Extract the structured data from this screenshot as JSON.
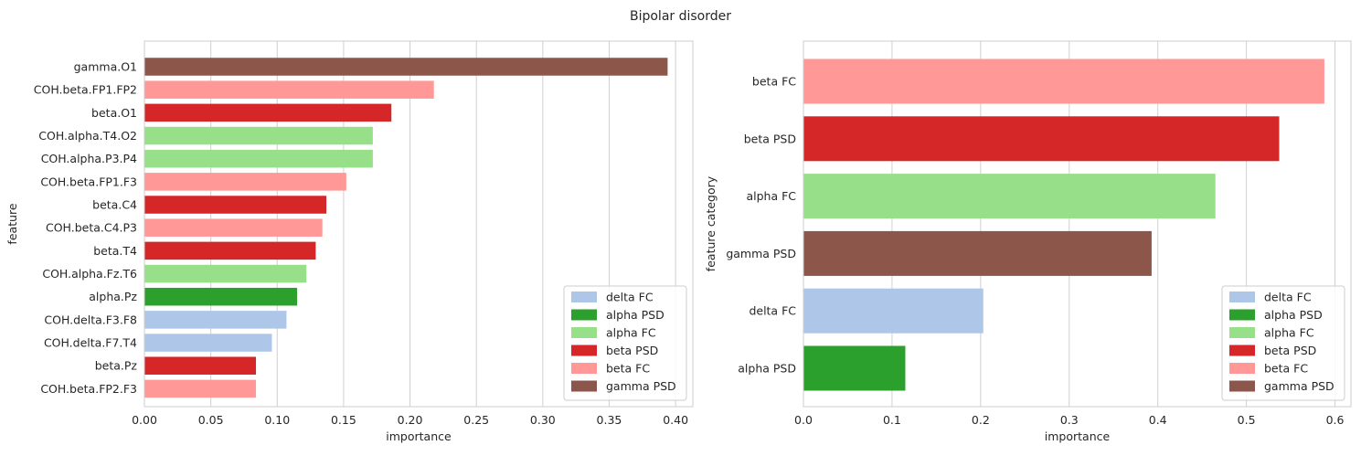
{
  "figure_title": "Bipolar disorder",
  "legend_entries": [
    {
      "name": "delta FC",
      "color": "#aec7e8"
    },
    {
      "name": "alpha PSD",
      "color": "#2ca02c"
    },
    {
      "name": "alpha FC",
      "color": "#98df8a"
    },
    {
      "name": "beta PSD",
      "color": "#d62728"
    },
    {
      "name": "beta FC",
      "color": "#ff9896"
    },
    {
      "name": "gamma PSD",
      "color": "#8c564b"
    }
  ],
  "chart_data": [
    {
      "type": "bar",
      "orientation": "horizontal",
      "xlabel": "importance",
      "ylabel": "feature",
      "xlim": [
        0,
        0.413
      ],
      "xticks": [
        "0.00",
        "0.05",
        "0.10",
        "0.15",
        "0.20",
        "0.25",
        "0.30",
        "0.35",
        "0.40"
      ],
      "grid": true,
      "legend_position": "lower right",
      "bars": [
        {
          "label": "gamma.O1",
          "value": 0.394,
          "category": "gamma PSD"
        },
        {
          "label": "COH.beta.FP1.FP2",
          "value": 0.218,
          "category": "beta FC"
        },
        {
          "label": "beta.O1",
          "value": 0.186,
          "category": "beta PSD"
        },
        {
          "label": "COH.alpha.T4.O2",
          "value": 0.172,
          "category": "alpha FC"
        },
        {
          "label": "COH.alpha.P3.P4",
          "value": 0.172,
          "category": "alpha FC"
        },
        {
          "label": "COH.beta.FP1.F3",
          "value": 0.152,
          "category": "beta FC"
        },
        {
          "label": "beta.C4",
          "value": 0.137,
          "category": "beta PSD"
        },
        {
          "label": "COH.beta.C4.P3",
          "value": 0.134,
          "category": "beta FC"
        },
        {
          "label": "beta.T4",
          "value": 0.129,
          "category": "beta PSD"
        },
        {
          "label": "COH.alpha.Fz.T6",
          "value": 0.122,
          "category": "alpha FC"
        },
        {
          "label": "alpha.Pz",
          "value": 0.115,
          "category": "alpha PSD"
        },
        {
          "label": "COH.delta.F3.F8",
          "value": 0.107,
          "category": "delta FC"
        },
        {
          "label": "COH.delta.F7.T4",
          "value": 0.096,
          "category": "delta FC"
        },
        {
          "label": "beta.Pz",
          "value": 0.084,
          "category": "beta PSD"
        },
        {
          "label": "COH.beta.FP2.F3",
          "value": 0.084,
          "category": "beta FC"
        }
      ]
    },
    {
      "type": "bar",
      "orientation": "horizontal",
      "xlabel": "importance",
      "ylabel": "feature category",
      "xlim": [
        0,
        0.618
      ],
      "xticks": [
        "0.0",
        "0.1",
        "0.2",
        "0.3",
        "0.4",
        "0.5",
        "0.6"
      ],
      "grid": true,
      "legend_position": "lower right",
      "bars": [
        {
          "label": "beta FC",
          "value": 0.588,
          "category": "beta FC"
        },
        {
          "label": "beta PSD",
          "value": 0.537,
          "category": "beta PSD"
        },
        {
          "label": "alpha FC",
          "value": 0.465,
          "category": "alpha FC"
        },
        {
          "label": "gamma PSD",
          "value": 0.393,
          "category": "gamma PSD"
        },
        {
          "label": "delta FC",
          "value": 0.203,
          "category": "delta FC"
        },
        {
          "label": "alpha PSD",
          "value": 0.115,
          "category": "alpha PSD"
        }
      ]
    }
  ]
}
